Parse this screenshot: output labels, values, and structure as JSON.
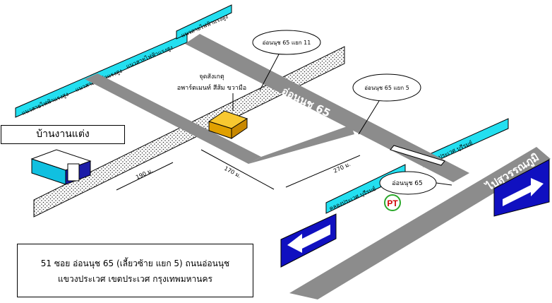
{
  "map": {
    "venue_label": "บ้านงานแต่ง",
    "landmark_line1": "จุดสังเกตุ",
    "landmark_line2": "อพาร์ตเมนท์ สีส้ม ขวามือ",
    "callout_top": "อ่อนนุช 65 แยก 11",
    "callout_right": "อ่อนนุช 65 แยก 5",
    "callout_sign": "อ่อนนุช 65",
    "road_onnut65": "อ่อนนุช 65",
    "road_yaek5": "แยก 5",
    "road_to_suvarnabhumi": "ไปสุวรรณภูมิ",
    "road_to_phrakhanong": "ไปพระโขนง",
    "power_line_label": "แนวสายไฟฟ้าแรงสูง",
    "canal_label": "คลองประเวศ บุรีรมย์",
    "dist_190": "190 ม.",
    "dist_170": "170 ม.",
    "dist_270": "270 ม.",
    "logo_text": "PT",
    "colors": {
      "road": "#8c8c8c",
      "canal": "#23dff0",
      "arrow_sign": "#1010c0",
      "building": "#f0b000"
    },
    "icons": [
      "building-icon",
      "house-icon",
      "logo-icon",
      "arrow-left-icon",
      "arrow-right-icon"
    ]
  },
  "info": {
    "address_line1": "51 ซอย อ่อนนุช 65 (เลี้ยวซ้าย แยก 5) ถนนอ่อนนุช",
    "address_line2": "แขวงประเวศ เขตประเวศ กรุงเทพมหานคร"
  }
}
